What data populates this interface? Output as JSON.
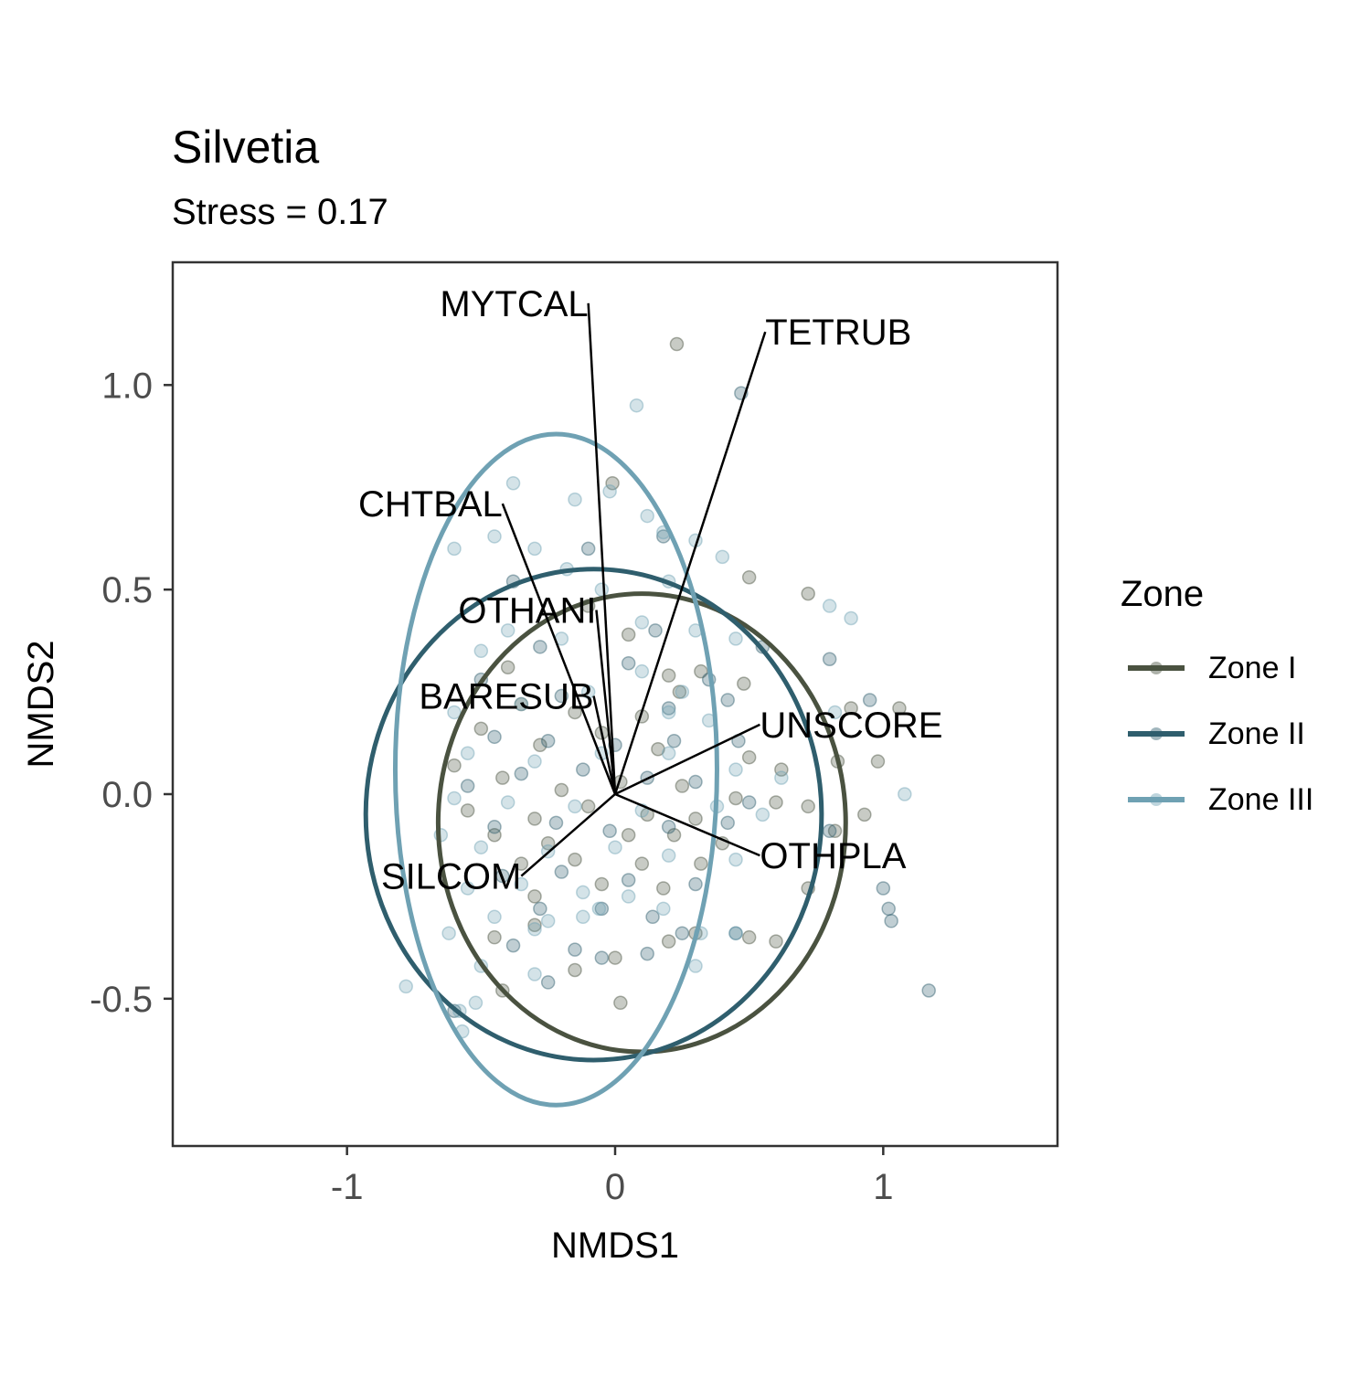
{
  "chart_data": {
    "type": "scatter",
    "title": "Silvetia",
    "subtitle": "Stress = 0.17",
    "xlabel": "NMDS1",
    "ylabel": "NMDS2",
    "xlim": [
      -1.65,
      1.65
    ],
    "ylim": [
      -0.86,
      1.3
    ],
    "x_ticks": [
      -1,
      0,
      1
    ],
    "x_tick_labels": [
      "-1",
      "0",
      "1"
    ],
    "y_ticks": [
      -0.5,
      0.0,
      0.5,
      1.0
    ],
    "y_tick_labels": [
      "-0.5",
      "0.0",
      "0.5",
      "1.0"
    ],
    "grid": false,
    "legend": {
      "title": "Zone",
      "position": "right"
    },
    "series": [
      {
        "name": "Zone I",
        "color": "#4a5240",
        "ellipse": {
          "cx": 0.1,
          "cy": -0.07,
          "rx": 0.76,
          "ry": 0.56
        },
        "points": [
          [
            0.23,
            1.1
          ],
          [
            -0.01,
            0.76
          ],
          [
            0.5,
            0.53
          ],
          [
            0.72,
            0.49
          ],
          [
            -0.4,
            0.31
          ],
          [
            -0.1,
            0.46
          ],
          [
            0.05,
            0.39
          ],
          [
            0.2,
            0.29
          ],
          [
            0.32,
            0.3
          ],
          [
            0.48,
            0.27
          ],
          [
            -0.35,
            0.22
          ],
          [
            -0.15,
            0.2
          ],
          [
            0.1,
            0.19
          ],
          [
            0.24,
            0.25
          ],
          [
            0.88,
            0.21
          ],
          [
            1.06,
            0.21
          ],
          [
            -0.5,
            0.16
          ],
          [
            -0.28,
            0.12
          ],
          [
            -0.05,
            0.15
          ],
          [
            0.16,
            0.11
          ],
          [
            0.5,
            0.09
          ],
          [
            0.62,
            0.06
          ],
          [
            0.83,
            0.08
          ],
          [
            0.98,
            0.08
          ],
          [
            -0.6,
            0.07
          ],
          [
            -0.42,
            0.04
          ],
          [
            -0.2,
            0.01
          ],
          [
            0.02,
            0.03
          ],
          [
            0.25,
            0.02
          ],
          [
            0.45,
            -0.01
          ],
          [
            0.6,
            -0.02
          ],
          [
            -0.55,
            -0.04
          ],
          [
            -0.3,
            -0.06
          ],
          [
            -0.1,
            -0.03
          ],
          [
            0.12,
            -0.05
          ],
          [
            0.3,
            -0.06
          ],
          [
            0.72,
            -0.03
          ],
          [
            0.93,
            -0.05
          ],
          [
            -0.45,
            -0.1
          ],
          [
            -0.25,
            -0.12
          ],
          [
            0.05,
            -0.1
          ],
          [
            0.22,
            -0.1
          ],
          [
            0.4,
            -0.12
          ],
          [
            0.82,
            -0.09
          ],
          [
            -0.35,
            -0.17
          ],
          [
            -0.15,
            -0.16
          ],
          [
            0.1,
            -0.17
          ],
          [
            0.32,
            -0.17
          ],
          [
            0.72,
            -0.23
          ],
          [
            -0.3,
            -0.25
          ],
          [
            -0.05,
            -0.22
          ],
          [
            0.18,
            -0.23
          ],
          [
            -0.45,
            -0.35
          ],
          [
            -0.3,
            -0.32
          ],
          [
            -0.15,
            -0.43
          ],
          [
            0.0,
            -0.4
          ],
          [
            0.2,
            -0.36
          ],
          [
            0.3,
            -0.34
          ],
          [
            0.5,
            -0.35
          ],
          [
            0.6,
            -0.36
          ],
          [
            0.02,
            -0.51
          ],
          [
            -0.42,
            -0.48
          ]
        ]
      },
      {
        "name": "Zone II",
        "color": "#2f5e6d",
        "ellipse": {
          "cx": -0.08,
          "cy": -0.05,
          "rx": 0.85,
          "ry": 0.6
        },
        "points": [
          [
            0.47,
            0.98
          ],
          [
            0.18,
            0.63
          ],
          [
            -0.1,
            0.6
          ],
          [
            -0.38,
            0.52
          ],
          [
            0.15,
            0.4
          ],
          [
            -0.28,
            0.36
          ],
          [
            0.05,
            0.32
          ],
          [
            0.35,
            0.28
          ],
          [
            0.55,
            0.36
          ],
          [
            0.8,
            0.33
          ],
          [
            -0.5,
            0.28
          ],
          [
            -0.2,
            0.24
          ],
          [
            0.2,
            0.21
          ],
          [
            0.42,
            0.23
          ],
          [
            0.95,
            0.23
          ],
          [
            -0.45,
            0.14
          ],
          [
            -0.25,
            0.13
          ],
          [
            0.0,
            0.12
          ],
          [
            0.22,
            0.13
          ],
          [
            0.46,
            0.13
          ],
          [
            -0.55,
            0.02
          ],
          [
            -0.35,
            0.05
          ],
          [
            -0.12,
            0.06
          ],
          [
            0.12,
            0.04
          ],
          [
            0.3,
            0.03
          ],
          [
            0.5,
            -0.02
          ],
          [
            -0.45,
            -0.08
          ],
          [
            -0.22,
            -0.07
          ],
          [
            -0.02,
            -0.09
          ],
          [
            0.2,
            -0.08
          ],
          [
            0.42,
            -0.07
          ],
          [
            0.8,
            -0.09
          ],
          [
            -0.42,
            -0.2
          ],
          [
            -0.2,
            -0.19
          ],
          [
            0.05,
            -0.21
          ],
          [
            0.3,
            -0.22
          ],
          [
            -0.28,
            -0.28
          ],
          [
            -0.05,
            -0.28
          ],
          [
            0.14,
            -0.3
          ],
          [
            -0.38,
            -0.37
          ],
          [
            -0.15,
            -0.38
          ],
          [
            -0.05,
            -0.4
          ],
          [
            0.12,
            -0.39
          ],
          [
            0.25,
            -0.34
          ],
          [
            0.45,
            -0.34
          ],
          [
            1.0,
            -0.23
          ],
          [
            1.02,
            -0.28
          ],
          [
            1.03,
            -0.31
          ],
          [
            1.17,
            -0.48
          ],
          [
            -0.6,
            -0.53
          ],
          [
            -0.25,
            -0.46
          ]
        ]
      },
      {
        "name": "Zone III",
        "color": "#6fa1b3",
        "ellipse": {
          "cx": -0.22,
          "cy": 0.06,
          "rx": 0.6,
          "ry": 0.82
        },
        "points": [
          [
            0.08,
            0.95
          ],
          [
            -0.38,
            0.76
          ],
          [
            -0.15,
            0.72
          ],
          [
            -0.02,
            0.74
          ],
          [
            0.12,
            0.68
          ],
          [
            0.3,
            0.62
          ],
          [
            0.4,
            0.58
          ],
          [
            -0.6,
            0.6
          ],
          [
            -0.45,
            0.63
          ],
          [
            -0.3,
            0.6
          ],
          [
            0.18,
            0.64
          ],
          [
            0.8,
            0.46
          ],
          [
            0.88,
            0.43
          ],
          [
            -0.18,
            0.55
          ],
          [
            -0.05,
            0.5
          ],
          [
            0.2,
            0.52
          ],
          [
            -0.4,
            0.4
          ],
          [
            -0.5,
            0.35
          ],
          [
            -0.2,
            0.38
          ],
          [
            0.1,
            0.42
          ],
          [
            0.3,
            0.4
          ],
          [
            0.45,
            0.38
          ],
          [
            0.1,
            0.3
          ],
          [
            0.25,
            0.25
          ],
          [
            0.82,
            0.2
          ],
          [
            -0.6,
            0.2
          ],
          [
            -0.35,
            0.22
          ],
          [
            -0.1,
            0.25
          ],
          [
            0.2,
            0.2
          ],
          [
            0.35,
            0.18
          ],
          [
            -0.55,
            0.1
          ],
          [
            -0.3,
            0.08
          ],
          [
            -0.05,
            0.1
          ],
          [
            0.2,
            0.1
          ],
          [
            0.45,
            0.06
          ],
          [
            0.62,
            0.04
          ],
          [
            -0.6,
            -0.01
          ],
          [
            -0.4,
            -0.02
          ],
          [
            -0.15,
            -0.03
          ],
          [
            0.1,
            -0.04
          ],
          [
            0.38,
            -0.03
          ],
          [
            0.55,
            -0.05
          ],
          [
            1.08,
            0.0
          ],
          [
            -0.65,
            -0.1
          ],
          [
            -0.5,
            -0.13
          ],
          [
            -0.25,
            -0.14
          ],
          [
            0.0,
            -0.13
          ],
          [
            0.2,
            -0.15
          ],
          [
            0.45,
            -0.16
          ],
          [
            -0.55,
            -0.23
          ],
          [
            -0.35,
            -0.22
          ],
          [
            -0.12,
            -0.24
          ],
          [
            0.05,
            -0.25
          ],
          [
            0.18,
            -0.28
          ],
          [
            -0.45,
            -0.3
          ],
          [
            -0.25,
            -0.31
          ],
          [
            -0.12,
            -0.3
          ],
          [
            -0.06,
            -0.28
          ],
          [
            -0.62,
            -0.34
          ],
          [
            -0.3,
            -0.33
          ],
          [
            0.32,
            -0.34
          ],
          [
            0.45,
            -0.34
          ],
          [
            -0.5,
            -0.42
          ],
          [
            -0.3,
            -0.44
          ],
          [
            0.3,
            -0.42
          ],
          [
            -0.78,
            -0.47
          ],
          [
            -0.58,
            -0.53
          ],
          [
            -0.52,
            -0.51
          ],
          [
            -0.57,
            -0.58
          ]
        ]
      }
    ],
    "vectors": [
      {
        "label": "MYTCAL",
        "x": -0.1,
        "y": 1.2
      },
      {
        "label": "TETRUB",
        "x": 0.56,
        "y": 1.13
      },
      {
        "label": "CHTBAL",
        "x": -0.42,
        "y": 0.71
      },
      {
        "label": "OTHANI",
        "x": -0.07,
        "y": 0.45
      },
      {
        "label": "BARESUB",
        "x": -0.08,
        "y": 0.24
      },
      {
        "label": "UNSCORE",
        "x": 0.54,
        "y": 0.17
      },
      {
        "label": "OTHPLA",
        "x": 0.54,
        "y": -0.15
      },
      {
        "label": "SILCOM",
        "x": -0.35,
        "y": -0.2
      }
    ]
  }
}
